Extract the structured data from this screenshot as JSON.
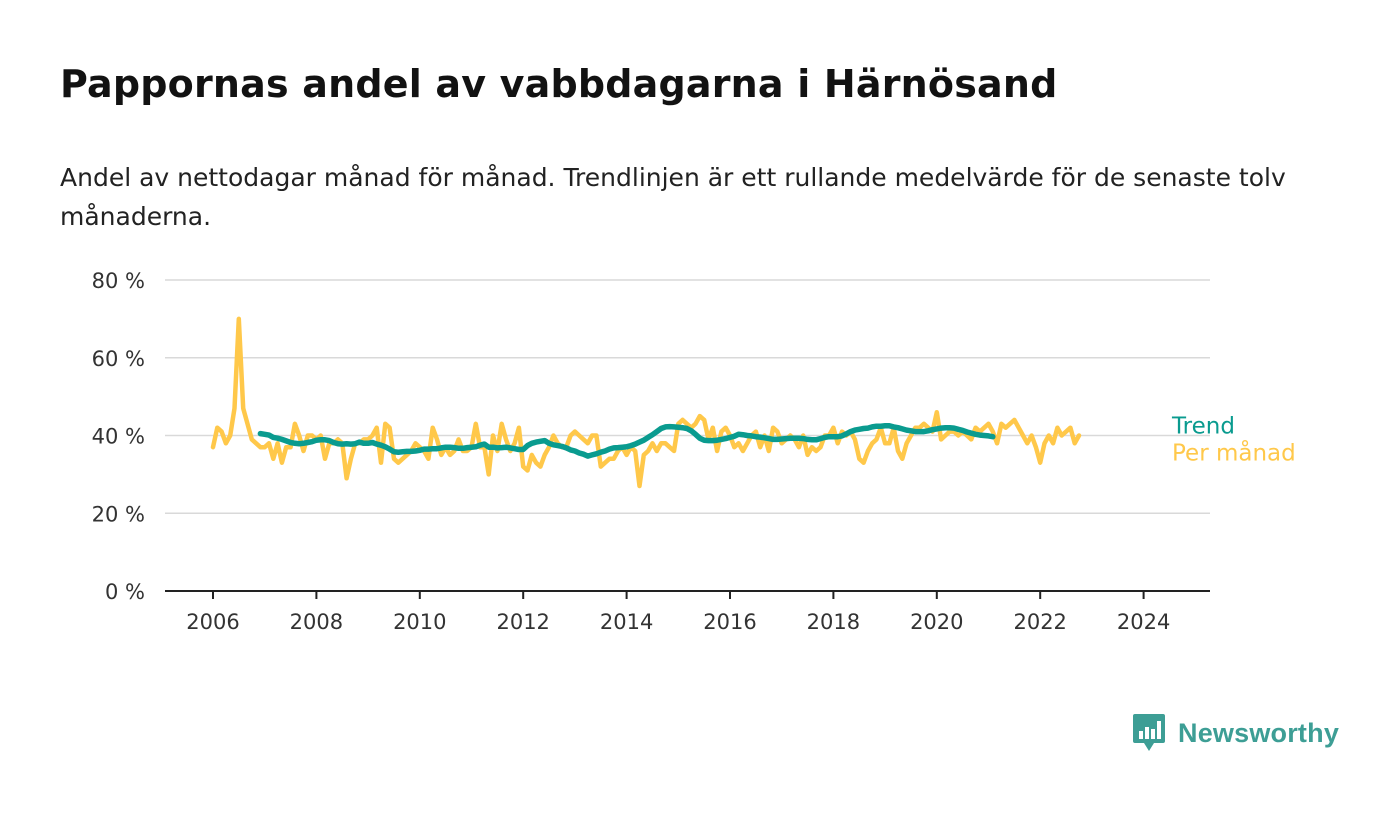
{
  "title": "Pappornas andel av vabbdagarna i Härnösand",
  "subtitle": "Andel av nettodagar månad för månad. Trendlinjen är ett rullande medelvärde för de senaste tolv månaderna.",
  "brand": "Newsworthy",
  "colors": {
    "monthly": "#ffc84a",
    "trend": "#0a9b8f",
    "brand": "#3d9e95"
  },
  "chart_data": {
    "type": "line",
    "ylim": [
      0,
      80
    ],
    "yticks": [
      0,
      20,
      40,
      60,
      80
    ],
    "ytick_labels": [
      "0 %",
      "20 %",
      "40 %",
      "60 %",
      "80 %"
    ],
    "xlim": [
      "2006-01",
      "2024-06"
    ],
    "xticks": [
      "2006",
      "2008",
      "2010",
      "2012",
      "2014",
      "2016",
      "2018",
      "2020",
      "2022",
      "2024"
    ],
    "series": [
      {
        "name": "Per månad",
        "start": "2006-01",
        "values": [
          37,
          42,
          41,
          38,
          40,
          47,
          70,
          47,
          43,
          39,
          38,
          37,
          37,
          38,
          34,
          38,
          33,
          37,
          37,
          43,
          40,
          36,
          40,
          40,
          39,
          40,
          34,
          38,
          38,
          39,
          38,
          29,
          34,
          38,
          38,
          39,
          39,
          40,
          42,
          33,
          43,
          42,
          34,
          33,
          34,
          35,
          36,
          38,
          37,
          36,
          34,
          42,
          39,
          35,
          37,
          35,
          36,
          39,
          36,
          36,
          37,
          43,
          37,
          37,
          30,
          40,
          36,
          43,
          39,
          36,
          38,
          42,
          32,
          31,
          35,
          33,
          32,
          35,
          37,
          40,
          38,
          37,
          37,
          40,
          41,
          40,
          39,
          38,
          40,
          40,
          32,
          33,
          34,
          34,
          36,
          37,
          35,
          37,
          36,
          27,
          35,
          36,
          38,
          36,
          38,
          38,
          37,
          36,
          43,
          44,
          43,
          42,
          43,
          45,
          44,
          39,
          42,
          36,
          41,
          42,
          40,
          37,
          38,
          36,
          38,
          40,
          41,
          37,
          40,
          36,
          42,
          41,
          38,
          39,
          40,
          39,
          37,
          40,
          35,
          37,
          36,
          37,
          40,
          40,
          42,
          38,
          41,
          40,
          41,
          39,
          34,
          33,
          36,
          38,
          39,
          42,
          38,
          38,
          42,
          36,
          34,
          38,
          40,
          42,
          42,
          43,
          42,
          41,
          46,
          39,
          40,
          41,
          41,
          40,
          41,
          40,
          39,
          42,
          41,
          42,
          43,
          41,
          38,
          43,
          42,
          43,
          44,
          42,
          40,
          38,
          40,
          37,
          33,
          38,
          40,
          38,
          42,
          40,
          41,
          42,
          38,
          40
        ]
      },
      {
        "name": "Trend",
        "start": "2006-12",
        "values": [
          40.5,
          40.3,
          40.1,
          39.5,
          39.3,
          39.0,
          38.6,
          38.2,
          38.0,
          37.9,
          38.0,
          38.2,
          38.4,
          38.8,
          38.9,
          38.9,
          38.7,
          38.2,
          37.9,
          37.8,
          37.9,
          37.8,
          37.9,
          38.3,
          38.0,
          38.0,
          38.2,
          37.8,
          37.5,
          37.1,
          36.5,
          35.8,
          35.7,
          35.8,
          35.9,
          35.9,
          36.0,
          36.2,
          36.5,
          36.5,
          36.6,
          36.6,
          36.8,
          37.0,
          37.0,
          36.9,
          36.7,
          36.7,
          36.9,
          37.0,
          37.1,
          37.5,
          37.8,
          37.0,
          37.0,
          36.8,
          36.9,
          37.0,
          36.8,
          36.6,
          36.4,
          36.4,
          37.4,
          38.0,
          38.3,
          38.5,
          38.7,
          38.0,
          37.6,
          37.4,
          37.2,
          36.8,
          36.3,
          36.0,
          35.5,
          35.2,
          34.7,
          35.0,
          35.3,
          35.7,
          36.0,
          36.5,
          36.8,
          36.9,
          37.0,
          37.1,
          37.4,
          37.8,
          38.3,
          38.8,
          39.5,
          40.2,
          41.0,
          41.8,
          42.2,
          42.3,
          42.2,
          42.1,
          42.0,
          41.8,
          41.2,
          40.3,
          39.3,
          38.8,
          38.7,
          38.7,
          38.8,
          39.0,
          39.2,
          39.5,
          39.8,
          40.3,
          40.2,
          40.0,
          39.9,
          39.7,
          39.6,
          39.4,
          39.2,
          39.0,
          39.0,
          39.1,
          39.2,
          39.3,
          39.3,
          39.3,
          39.2,
          39.0,
          38.9,
          38.9,
          39.2,
          39.5,
          39.7,
          39.7,
          39.7,
          39.9,
          40.4,
          41.0,
          41.4,
          41.6,
          41.8,
          41.9,
          42.2,
          42.4,
          42.4,
          42.5,
          42.5,
          42.2,
          42.0,
          41.7,
          41.4,
          41.2,
          41.0,
          41.0,
          41.0,
          41.2,
          41.5,
          41.7,
          41.9,
          42.0,
          42.0,
          41.9,
          41.6,
          41.3,
          40.9,
          40.6,
          40.3,
          40.1,
          40.0,
          39.9,
          39.7
        ]
      }
    ],
    "legend": "right-end-labels"
  }
}
